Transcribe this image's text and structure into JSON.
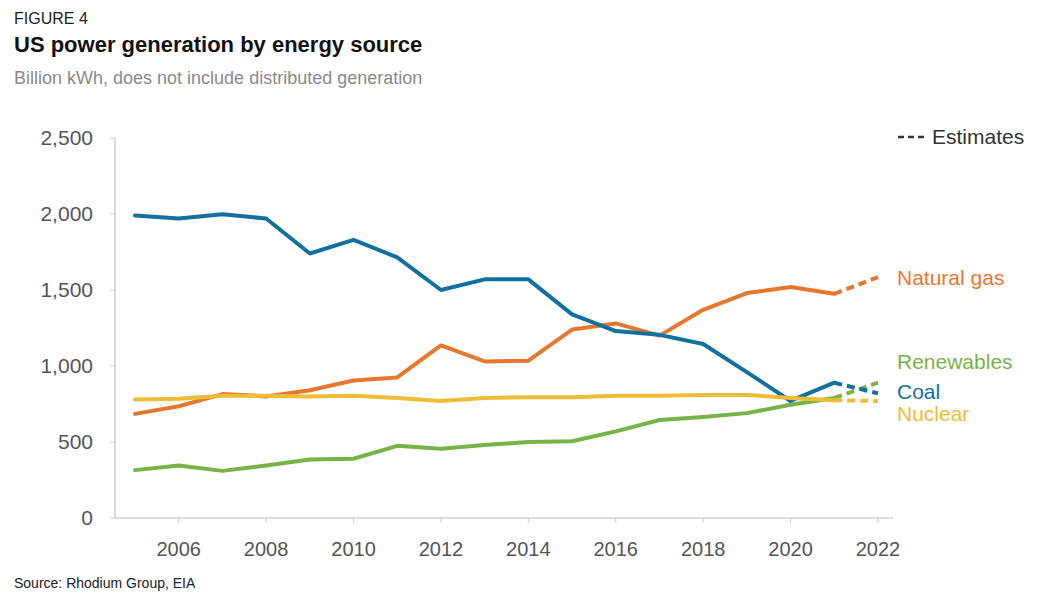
{
  "chart_data": {
    "type": "line",
    "figure_label": "FIGURE 4",
    "title": "US power generation by energy source",
    "subtitle": "Billion kWh, does not include distributed generation",
    "source": "Source: Rhodium Group, EIA",
    "x": [
      2005,
      2006,
      2007,
      2008,
      2009,
      2010,
      2011,
      2012,
      2013,
      2014,
      2015,
      2016,
      2017,
      2018,
      2019,
      2020,
      2021,
      2022
    ],
    "series": [
      {
        "name": "Natural gas",
        "color": "#e8772e",
        "values": [
          685,
          735,
          815,
          800,
          840,
          905,
          925,
          1135,
          1030,
          1035,
          1240,
          1280,
          1200,
          1370,
          1480,
          1520,
          1475,
          1585
        ]
      },
      {
        "name": "Renewables",
        "color": "#77b347",
        "values": [
          315,
          345,
          310,
          345,
          385,
          390,
          475,
          455,
          480,
          500,
          505,
          570,
          645,
          665,
          690,
          745,
          790,
          890
        ]
      },
      {
        "name": "Coal",
        "color": "#11709f",
        "values": [
          1990,
          1970,
          1998,
          1970,
          1740,
          1830,
          1715,
          1500,
          1570,
          1570,
          1340,
          1230,
          1205,
          1145,
          960,
          770,
          890,
          820
        ]
      },
      {
        "name": "Nuclear",
        "color": "#eebd38",
        "values": [
          780,
          785,
          805,
          805,
          800,
          805,
          790,
          770,
          790,
          795,
          795,
          805,
          805,
          810,
          810,
          790,
          775,
          770
        ]
      }
    ],
    "estimates": {
      "label": "Estimates",
      "x": [
        2021,
        2022
      ]
    },
    "xlim": [
      2005,
      2022
    ],
    "xticks": [
      2006,
      2008,
      2010,
      2012,
      2014,
      2016,
      2018,
      2020,
      2022
    ],
    "ylim": [
      0,
      2500
    ],
    "yticks": [
      0,
      500,
      {
        "value": 1000,
        "label": "1,000"
      },
      {
        "value": 1500,
        "label": "1,500"
      },
      {
        "value": 2000,
        "label": "2,000"
      },
      {
        "value": 2500,
        "label": "2,500"
      }
    ],
    "grid": false
  }
}
